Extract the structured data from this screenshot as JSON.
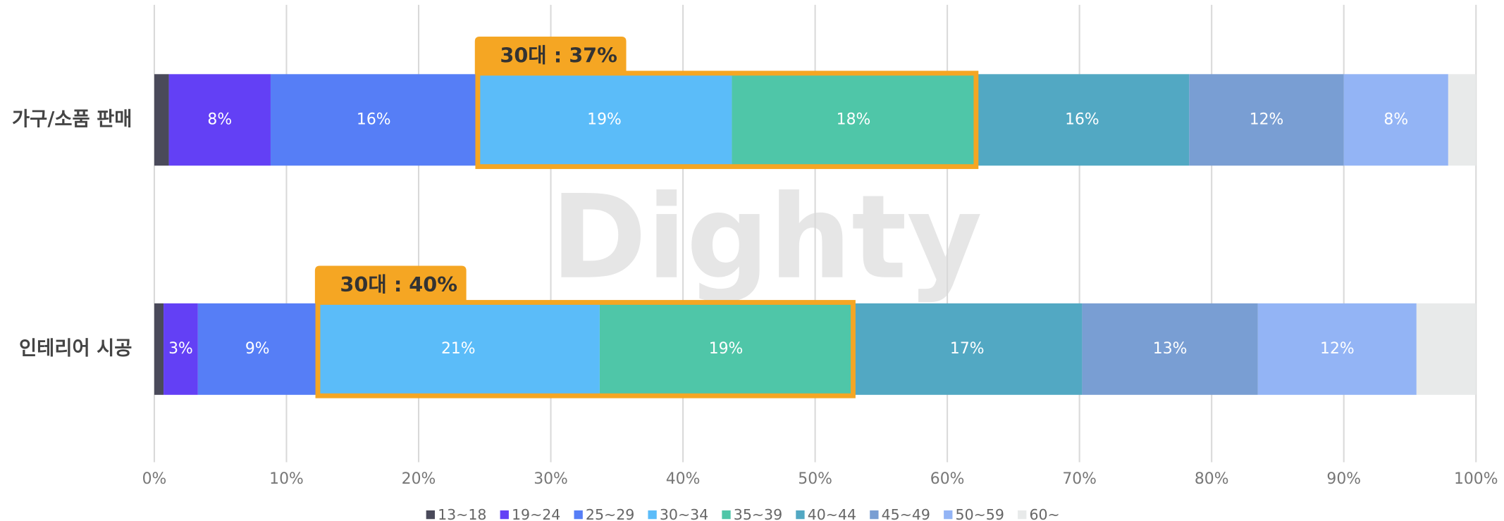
{
  "chart_data": {
    "type": "stacked_barh",
    "watermark": "Dighty",
    "categories": [
      "가구/소품 판매",
      "인테리어 시공"
    ],
    "series": [
      {
        "name": "13~18",
        "color": "#4a4a5a",
        "values": [
          1.1,
          0.7
        ]
      },
      {
        "name": "19~24",
        "color": "#6340f5",
        "values": [
          7.7,
          2.6
        ],
        "value_labels": [
          "8%",
          "3%"
        ]
      },
      {
        "name": "25~29",
        "color": "#567ef6",
        "values": [
          15.6,
          9.0
        ],
        "value_labels": [
          "16%",
          "9%"
        ]
      },
      {
        "name": "30~34",
        "color": "#5bbcf9",
        "values": [
          19.3,
          21.4
        ],
        "value_labels": [
          "19%",
          "21%"
        ]
      },
      {
        "name": "35~39",
        "color": "#4fc6a8",
        "values": [
          18.4,
          19.1
        ],
        "value_labels": [
          "18%",
          "19%"
        ]
      },
      {
        "name": "40~44",
        "color": "#52a8c3",
        "values": [
          16.2,
          17.4
        ],
        "value_labels": [
          "16%",
          "17%"
        ]
      },
      {
        "name": "45~49",
        "color": "#799ed3",
        "values": [
          11.7,
          13.3
        ],
        "value_labels": [
          "12%",
          "13%"
        ]
      },
      {
        "name": "50~59",
        "color": "#93b4f5",
        "values": [
          7.9,
          12.0
        ],
        "value_labels": [
          "8%",
          "12%"
        ]
      },
      {
        "name": "60~",
        "color": "#e8eaea",
        "values": [
          2.1,
          4.5
        ]
      }
    ],
    "annotations": [
      "30대 : 37%",
      "30대 : 40%"
    ],
    "xlim": [
      0,
      100
    ],
    "xticks": [
      {
        "value": 0,
        "label": "0%"
      },
      {
        "value": 10,
        "label": "10%"
      },
      {
        "value": 20,
        "label": "20%"
      },
      {
        "value": 30,
        "label": "30%"
      },
      {
        "value": 40,
        "label": "40%"
      },
      {
        "value": 50,
        "label": "50%"
      },
      {
        "value": 60,
        "label": "60%"
      },
      {
        "value": 70,
        "label": "70%"
      },
      {
        "value": 80,
        "label": "80%"
      },
      {
        "value": 90,
        "label": "90%"
      },
      {
        "value": 100,
        "label": "100%"
      }
    ],
    "grid": true,
    "legend": "bottom"
  }
}
